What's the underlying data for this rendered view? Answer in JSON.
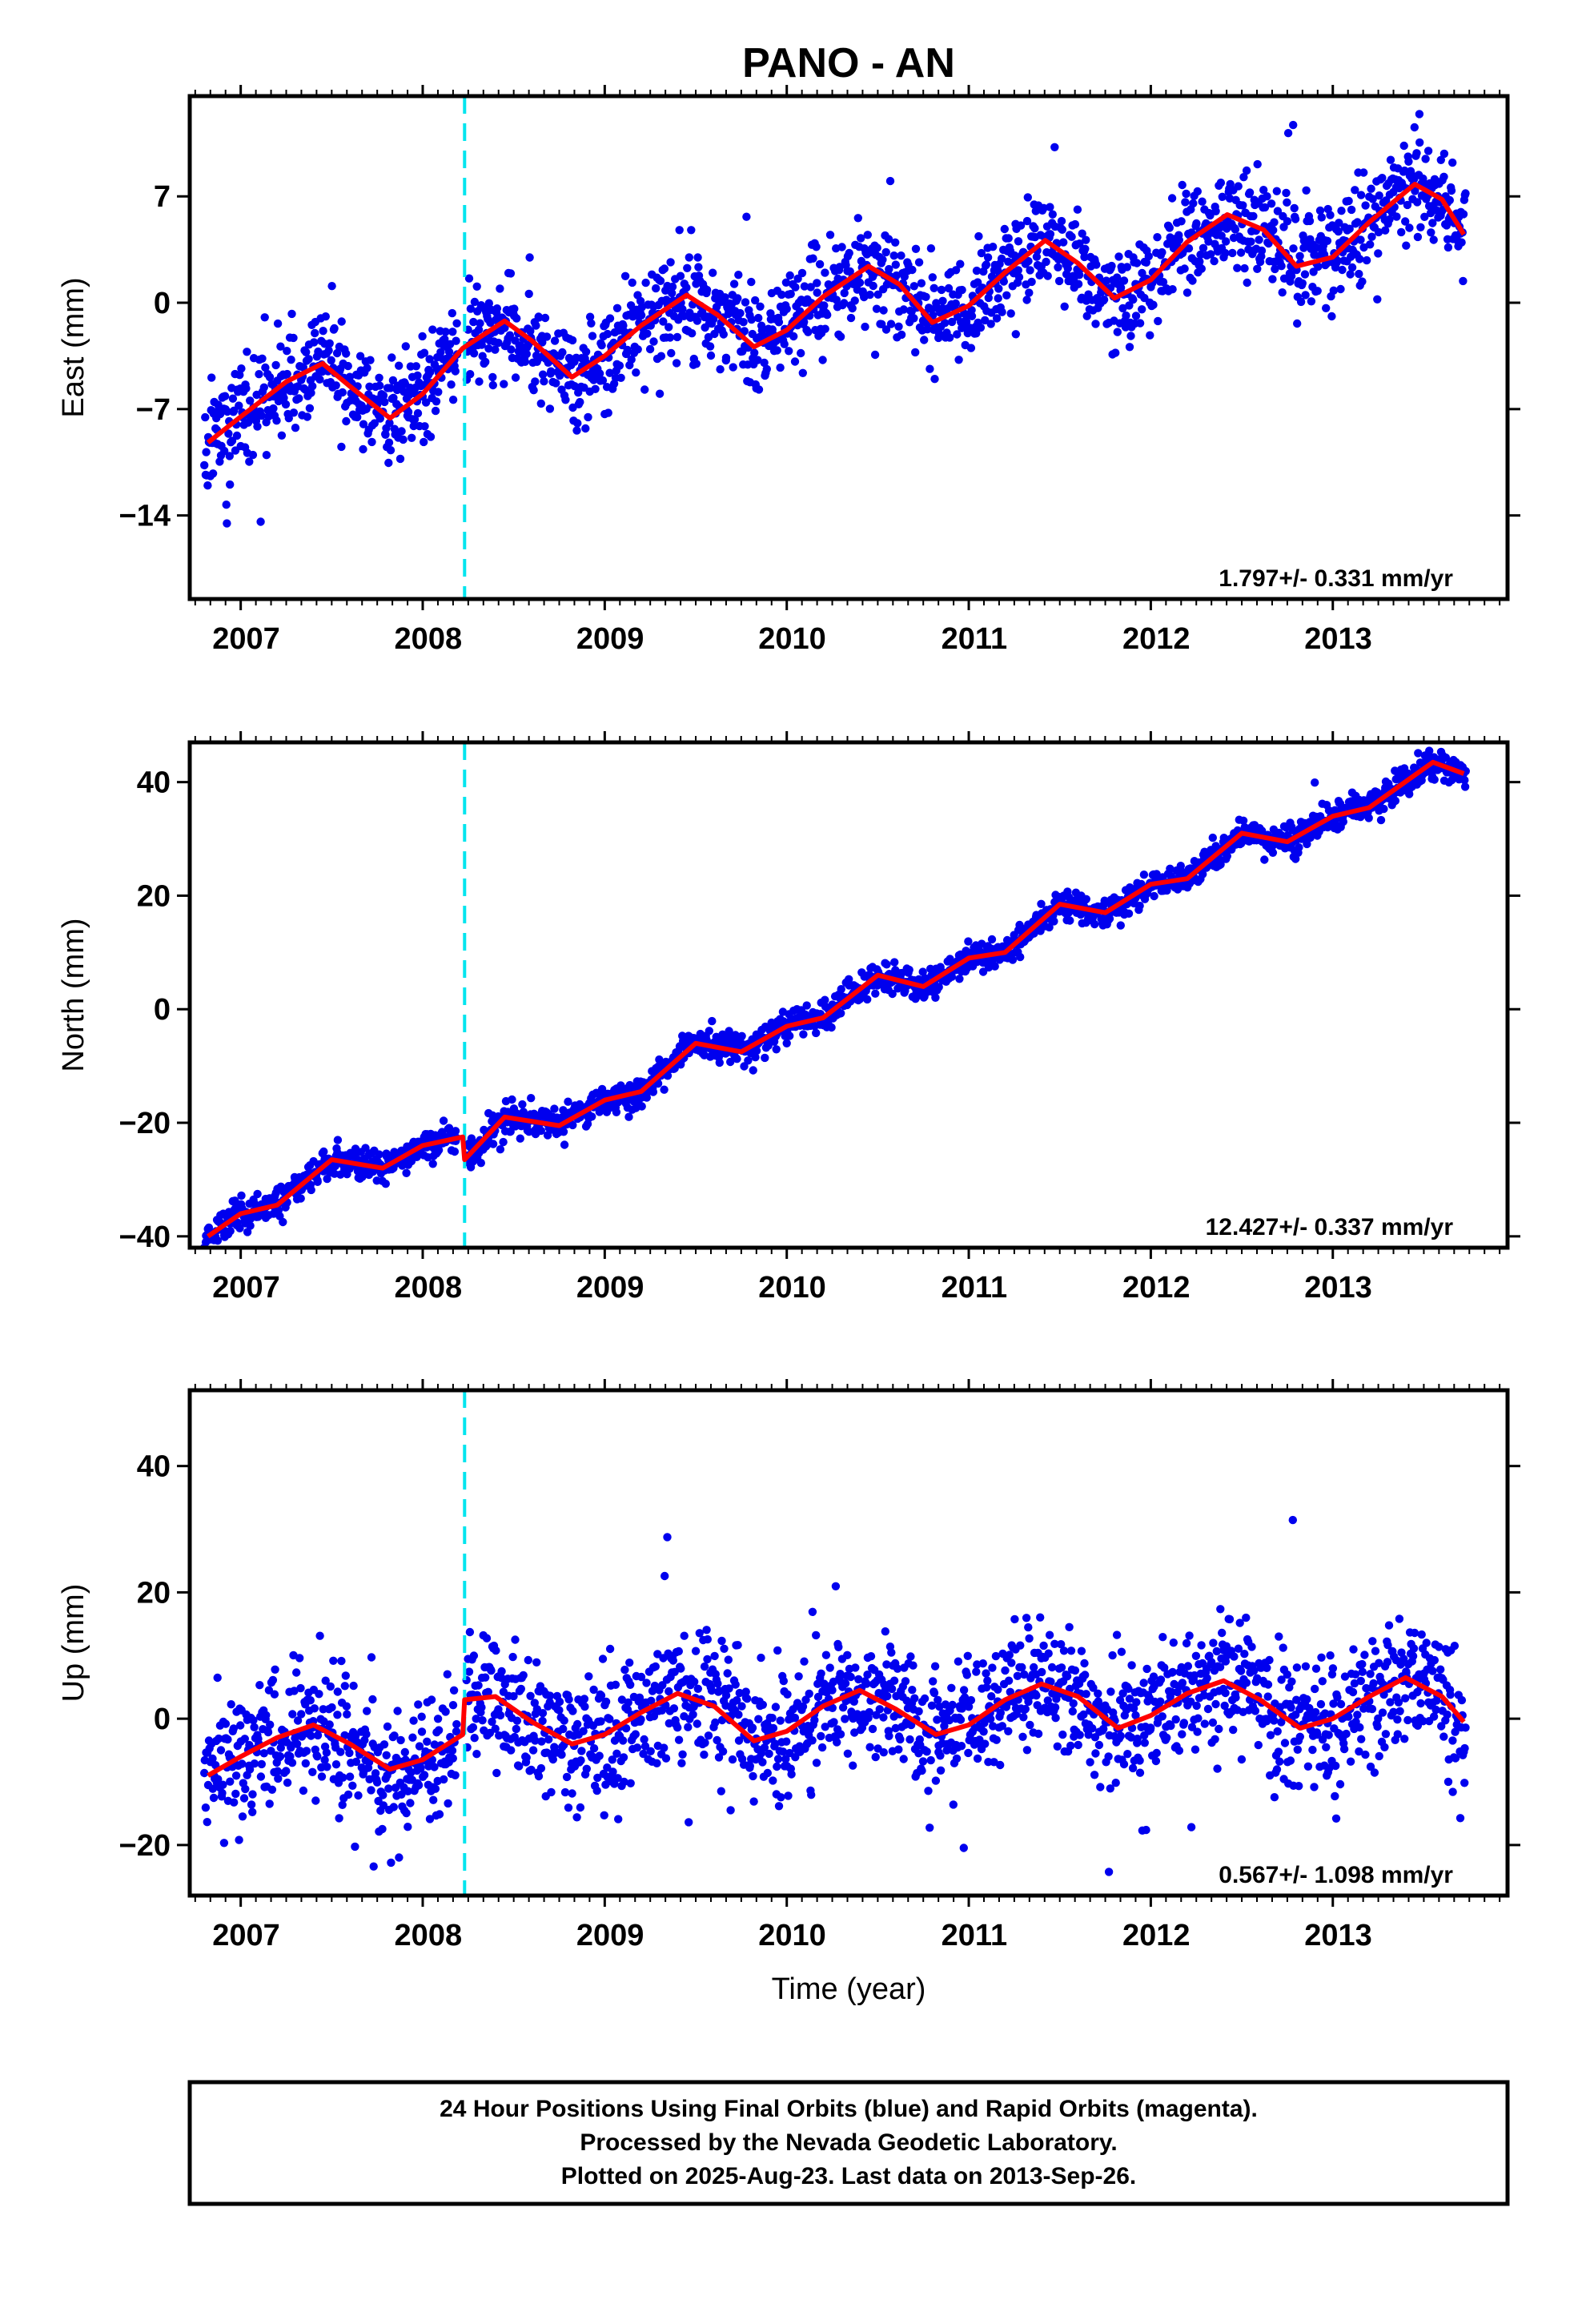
{
  "title": "PANO - AN",
  "footer": {
    "line1": "24 Hour Positions Using Final Orbits (blue) and Rapid Orbits (magenta).",
    "line2": "Processed by the Nevada Geodetic Laboratory.",
    "line3": "Plotted on 2025-Aug-23. Last data on 2013-Sep-26."
  },
  "colors": {
    "points": "#0000ee",
    "model": "#ff0000",
    "event_line": "#00e5ee",
    "frame": "#000000"
  },
  "chart_data": [
    {
      "type": "scatter",
      "name": "east",
      "ylabel": "East (mm)",
      "xlim": [
        2006.72,
        2013.96
      ],
      "ylim": [
        -19.5,
        13.6
      ],
      "x_ticks": [
        2007,
        2008,
        2009,
        2010,
        2011,
        2012,
        2013
      ],
      "x_tick_labels": [
        "2007",
        "2008",
        "2009",
        "2010",
        "2011",
        "2012",
        "2013"
      ],
      "y_ticks": [
        -14,
        -7,
        0,
        7
      ],
      "y_tick_labels": [
        "-14",
        "-7",
        "0",
        "7"
      ],
      "rate_label": "1.797+/- 0.331 mm/yr",
      "event_line_x": 2008.23,
      "model_curve": {
        "x": [
          2006.82,
          2007.0,
          2007.25,
          2007.45,
          2007.6,
          2007.82,
          2008.0,
          2008.22,
          2008.45,
          2008.6,
          2008.82,
          2009.0,
          2009.2,
          2009.45,
          2009.62,
          2009.82,
          2010.0,
          2010.2,
          2010.45,
          2010.62,
          2010.8,
          2011.0,
          2011.2,
          2011.42,
          2011.6,
          2011.8,
          2012.0,
          2012.2,
          2012.42,
          2012.62,
          2012.8,
          2013.0,
          2013.2,
          2013.45,
          2013.6,
          2013.72
        ],
        "y": [
          -9.2,
          -7.5,
          -5.2,
          -4.0,
          -5.5,
          -7.6,
          -6.0,
          -3.0,
          -1.2,
          -2.5,
          -4.9,
          -3.5,
          -1.5,
          0.5,
          -0.8,
          -2.9,
          -1.8,
          0.4,
          2.4,
          1.2,
          -1.3,
          -0.2,
          2.0,
          4.1,
          2.6,
          0.3,
          1.5,
          4.0,
          5.8,
          4.8,
          2.4,
          3.0,
          5.3,
          7.8,
          6.8,
          4.5
        ]
      },
      "scatter": {
        "x_start": 2006.8,
        "x_end": 2013.73,
        "gap_start": 2008.19,
        "gap_end": 2008.24,
        "count": 1900,
        "noise_sd": 1.7,
        "outlier_rate": 0.012,
        "outlier_sd": 4.5,
        "seed": 11
      }
    },
    {
      "type": "scatter",
      "name": "north",
      "ylabel": "North (mm)",
      "xlim": [
        2006.72,
        2013.96
      ],
      "ylim": [
        -42,
        47
      ],
      "x_ticks": [
        2007,
        2008,
        2009,
        2010,
        2011,
        2012,
        2013
      ],
      "x_tick_labels": [
        "2007",
        "2008",
        "2009",
        "2010",
        "2011",
        "2012",
        "2013"
      ],
      "y_ticks": [
        -40,
        -20,
        0,
        20,
        40
      ],
      "y_tick_labels": [
        "-40",
        "-20",
        "0",
        "20",
        "40"
      ],
      "rate_label": "12.427+/- 0.337 mm/yr",
      "event_line_x": 2008.23,
      "model_curve": {
        "x": [
          2006.82,
          2007.0,
          2007.2,
          2007.5,
          2007.78,
          2008.0,
          2008.22,
          2008.23,
          2008.45,
          2008.75,
          2009.0,
          2009.2,
          2009.5,
          2009.75,
          2010.0,
          2010.2,
          2010.5,
          2010.75,
          2011.0,
          2011.2,
          2011.5,
          2011.75,
          2012.0,
          2012.2,
          2012.5,
          2012.75,
          2013.0,
          2013.2,
          2013.55,
          2013.72
        ],
        "y": [
          -40.0,
          -36.0,
          -34.5,
          -26.5,
          -28.0,
          -24.0,
          -22.5,
          -26.5,
          -19.0,
          -20.5,
          -16.0,
          -14.5,
          -6.0,
          -7.5,
          -3.0,
          -1.5,
          6.0,
          4.0,
          9.0,
          10.0,
          18.5,
          17.0,
          22.0,
          23.0,
          31.0,
          29.5,
          34.0,
          35.5,
          43.5,
          41.5
        ]
      },
      "scatter": {
        "x_start": 2006.8,
        "x_end": 2013.73,
        "gap_start": 2008.19,
        "gap_end": 2008.24,
        "count": 1900,
        "noise_sd": 1.3,
        "outlier_rate": 0.01,
        "outlier_sd": 4.0,
        "seed": 23
      }
    },
    {
      "type": "scatter",
      "name": "up",
      "xlabel": "Time (year)",
      "ylabel": "Up (mm)",
      "xlim": [
        2006.72,
        2013.96
      ],
      "ylim": [
        -28,
        52
      ],
      "x_ticks": [
        2007,
        2008,
        2009,
        2010,
        2011,
        2012,
        2013
      ],
      "x_tick_labels": [
        "2007",
        "2008",
        "2009",
        "2010",
        "2011",
        "2012",
        "2013"
      ],
      "y_ticks": [
        -20,
        0,
        20,
        40
      ],
      "y_tick_labels": [
        "-20",
        "0",
        "20",
        "40"
      ],
      "rate_label": "0.567+/- 1.098 mm/yr",
      "event_line_x": 2008.23,
      "model_curve": {
        "x": [
          2006.82,
          2007.0,
          2007.2,
          2007.4,
          2007.6,
          2007.82,
          2008.0,
          2008.22,
          2008.23,
          2008.4,
          2008.6,
          2008.82,
          2009.0,
          2009.2,
          2009.4,
          2009.6,
          2009.82,
          2010.0,
          2010.2,
          2010.4,
          2010.6,
          2010.82,
          2011.0,
          2011.2,
          2011.4,
          2011.6,
          2011.82,
          2012.0,
          2012.2,
          2012.4,
          2012.6,
          2012.82,
          2013.0,
          2013.2,
          2013.4,
          2013.6,
          2013.72
        ],
        "y": [
          -9.0,
          -6.0,
          -3.0,
          -1.0,
          -4.0,
          -8.0,
          -6.5,
          -2.5,
          3.0,
          3.5,
          -0.5,
          -4.0,
          -2.5,
          1.0,
          4.0,
          2.0,
          -3.5,
          -2.0,
          2.0,
          4.5,
          1.5,
          -2.5,
          -1.0,
          3.0,
          5.5,
          3.5,
          -1.5,
          0.5,
          4.0,
          6.0,
          3.0,
          -1.5,
          0.0,
          3.5,
          6.5,
          3.5,
          -0.5
        ]
      },
      "scatter": {
        "x_start": 2006.8,
        "x_end": 2013.73,
        "gap_start": 2008.19,
        "gap_end": 2008.24,
        "count": 1900,
        "noise_sd": 5.3,
        "outlier_rate": 0.015,
        "outlier_sd": 12.0,
        "seed": 37
      }
    }
  ]
}
